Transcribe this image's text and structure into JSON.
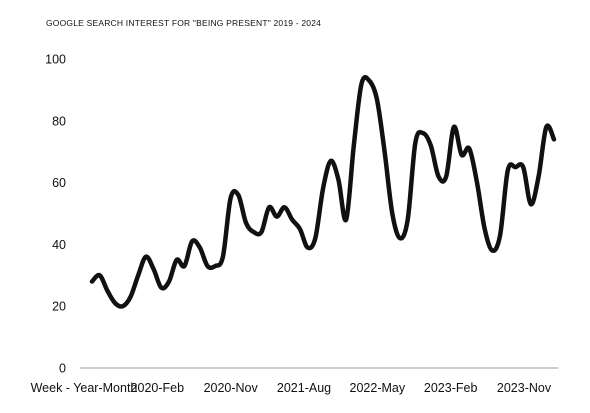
{
  "chart_data": {
    "type": "line",
    "title": "GOOGLE SEARCH INTEREST FOR \"BEING PRESENT\" 2019 - 2024",
    "xlabel": "",
    "ylabel": "",
    "ylim": [
      0,
      100
    ],
    "yticks": [
      0,
      20,
      40,
      60,
      80,
      100
    ],
    "xticks": [
      "Week - Year-Month",
      "2020-Feb",
      "2020-Nov",
      "2021-Aug",
      "2022-May",
      "2023-Feb",
      "2023-Nov"
    ],
    "grid": false,
    "legend": "none",
    "line_color": "#111111",
    "series": [
      {
        "values": [
          28,
          30,
          25,
          21,
          20,
          23,
          30,
          36,
          32,
          26,
          28,
          35,
          33,
          41,
          39,
          33,
          33,
          36,
          55,
          56,
          47,
          44,
          44,
          52,
          49,
          52,
          48,
          45,
          39,
          42,
          58,
          67,
          61,
          48,
          72,
          92,
          93,
          87,
          70,
          50,
          42,
          48,
          73,
          76,
          72,
          62,
          62,
          78,
          69,
          71,
          60,
          45,
          38,
          43,
          64,
          65,
          65,
          53,
          62,
          78,
          74
        ]
      }
    ]
  }
}
